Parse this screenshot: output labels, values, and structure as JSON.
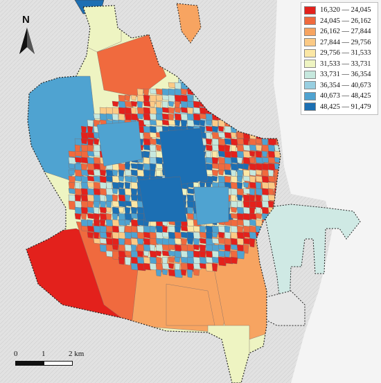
{
  "map": {
    "north_label": "N",
    "scale": {
      "ticks": [
        "0",
        "1",
        "2 km"
      ]
    },
    "legend": [
      {
        "label": "16,320 — 24,045",
        "color": "#e3211c"
      },
      {
        "label": "24,045 — 26,162",
        "color": "#f06a3e"
      },
      {
        "label": "26,162 — 27,844",
        "color": "#f7a461"
      },
      {
        "label": "27,844 — 29,756",
        "color": "#fbca86"
      },
      {
        "label": "29,756 — 31,533",
        "color": "#fbe7a5"
      },
      {
        "label": "31,533 — 33,731",
        "color": "#eef4c2"
      },
      {
        "label": "33,731 — 36,354",
        "color": "#c6e8de"
      },
      {
        "label": "36,354 — 40,673",
        "color": "#98cfe1"
      },
      {
        "label": "40,673 — 48,425",
        "color": "#4fa3d1"
      },
      {
        "label": "48,425 — 91,479",
        "color": "#1c6fb3"
      }
    ]
  }
}
